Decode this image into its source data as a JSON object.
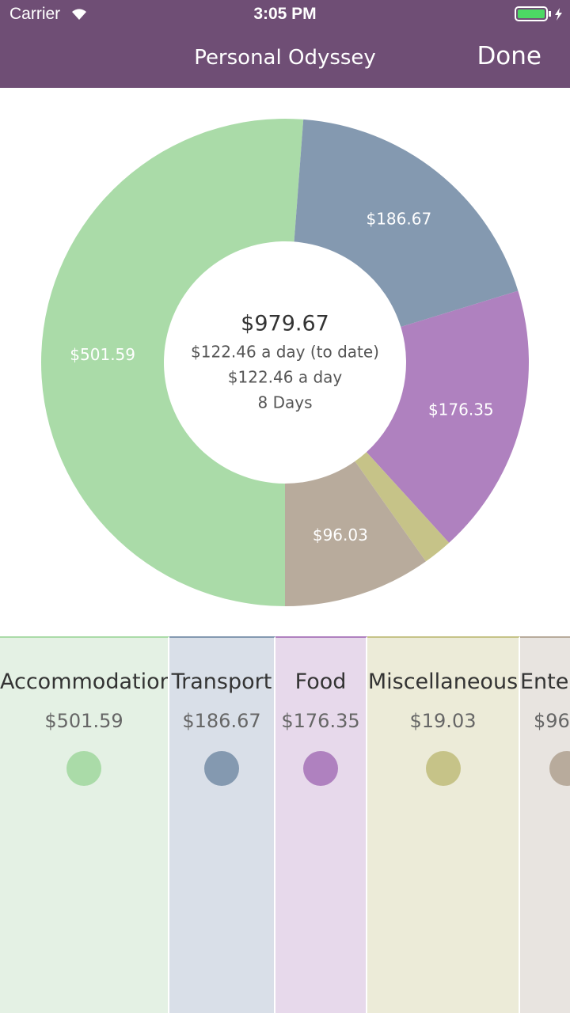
{
  "status_bar": {
    "carrier": "Carrier",
    "time": "3:05 PM"
  },
  "nav": {
    "title": "Personal Odyssey",
    "done": "Done"
  },
  "chart_data": {
    "type": "pie",
    "categories": [
      "Accommodation",
      "Transport",
      "Food",
      "Miscellaneous",
      "Entertainment"
    ],
    "values": [
      501.59,
      186.67,
      176.35,
      19.03,
      96.03
    ],
    "value_labels": [
      "$501.59",
      "$186.67",
      "$176.35",
      "$19.03",
      "$96.03"
    ],
    "colors": [
      "#aadba8",
      "#8499b0",
      "#af81bf",
      "#c6c388",
      "#b8ab9c"
    ],
    "center": {
      "total": "$979.67",
      "per_day_to_date": "$122.46 a day (to date)",
      "per_day": "$122.46 a day",
      "days": "8 Days"
    }
  },
  "cards": {
    "backgrounds": [
      "#e4f1e4",
      "#d9dfe8",
      "#e7d9eb",
      "#ecebd8",
      "#e8e4e0"
    ]
  }
}
